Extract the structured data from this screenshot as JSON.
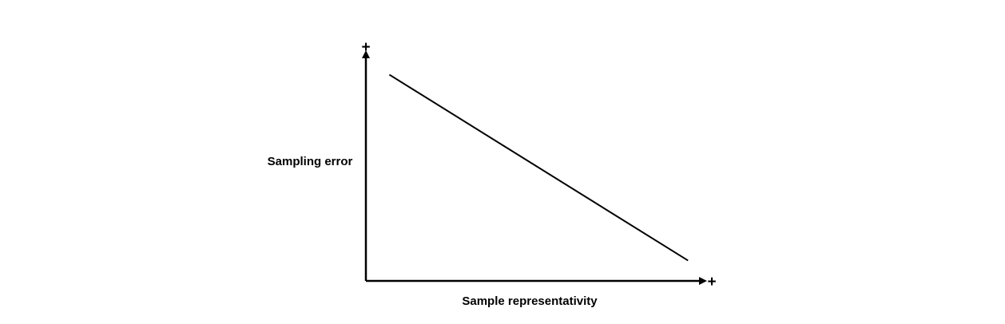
{
  "chart_data": {
    "type": "line",
    "title": "",
    "xlabel": "Sample representativity",
    "ylabel": "Sampling error",
    "x_end_label": "+",
    "y_end_label": "+",
    "xlim": [
      0,
      1
    ],
    "ylim": [
      0,
      1
    ],
    "grid": false,
    "series": [
      {
        "x": [
          0.07,
          0.96
        ],
        "y": [
          0.91,
          0.09
        ]
      }
    ]
  },
  "colors": {
    "axis": "#000000",
    "line": "#000000",
    "background": "#ffffff"
  }
}
